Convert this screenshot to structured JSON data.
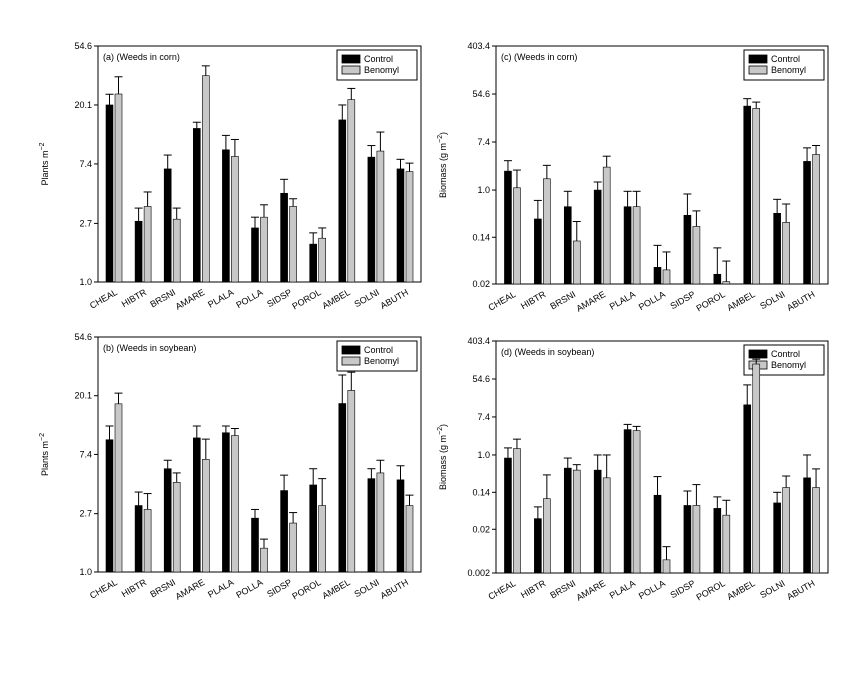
{
  "figure": {
    "legend": {
      "entries": [
        "Control",
        "Benomyl"
      ]
    },
    "colors": {
      "control": "#000000",
      "benomyl": "#c8c8c8",
      "axis": "#000000"
    }
  },
  "chart_data": [
    {
      "type": "bar",
      "panel": "a",
      "title": "(a) (Weeds in corn)",
      "ylabel": "Plants m",
      "ylabel_superscript": "−2",
      "yscale": "log",
      "yticks": [
        1.0,
        2.7,
        7.4,
        20.1,
        54.6
      ],
      "ytick_labels": [
        "1.0",
        "2.7",
        "7.4",
        "20.1",
        "54.6"
      ],
      "ylim": [
        1.0,
        54.6
      ],
      "legend_position": "top-right",
      "categories": [
        "CHEAL",
        "HIBTR",
        "BRSNI",
        "AMARE",
        "PLALA",
        "POLLA",
        "SIDSP",
        "POROL",
        "AMBEL",
        "SOLNI",
        "ABUTH"
      ],
      "series": [
        {
          "name": "Control",
          "values": [
            20.1,
            2.8,
            6.8,
            13.5,
            9.4,
            2.5,
            4.5,
            1.9,
            15.6,
            8.3,
            6.8
          ],
          "errors": [
            4.0,
            0.7,
            1.8,
            1.5,
            2.6,
            0.5,
            1.2,
            0.4,
            4.5,
            1.8,
            1.2
          ]
        },
        {
          "name": "Benomyl",
          "values": [
            24.2,
            3.6,
            2.9,
            33.0,
            8.4,
            3.0,
            3.6,
            2.1,
            22.0,
            9.2,
            6.5
          ],
          "errors": [
            8.2,
            1.0,
            0.6,
            6.0,
            2.8,
            0.7,
            0.5,
            0.4,
            4.6,
            3.5,
            1.0
          ]
        }
      ]
    },
    {
      "type": "bar",
      "panel": "c",
      "title": "(c) (Weeds in corn)",
      "ylabel": "Biomass (g m",
      "ylabel_superscript": "−2",
      "ylabel_suffix": ")",
      "yscale": "log",
      "yticks": [
        0.02,
        0.14,
        1.0,
        7.4,
        54.6,
        403.4
      ],
      "ytick_labels": [
        "0.02",
        "0.14",
        "1.0",
        "7.4",
        "54.6",
        "403.4"
      ],
      "ylim": [
        0.02,
        403.4
      ],
      "legend_position": "top-right",
      "categories": [
        "CHEAL",
        "HIBTR",
        "BRSNI",
        "AMARE",
        "PLALA",
        "POLLA",
        "SIDSP",
        "POROL",
        "AMBEL",
        "SOLNI",
        "ABUTH"
      ],
      "series": [
        {
          "name": "Control",
          "values": [
            2.2,
            0.3,
            0.5,
            1.0,
            0.5,
            0.04,
            0.35,
            0.03,
            33.0,
            0.38,
            3.3
          ],
          "errors": [
            1.2,
            0.35,
            0.45,
            0.4,
            0.45,
            0.06,
            0.5,
            0.06,
            12.0,
            0.3,
            2.5
          ]
        },
        {
          "name": "Benomyl",
          "values": [
            1.1,
            1.6,
            0.12,
            2.6,
            0.5,
            0.036,
            0.22,
            0.022,
            30.0,
            0.26,
            4.4
          ],
          "errors": [
            1.2,
            1.2,
            0.15,
            1.5,
            0.45,
            0.04,
            0.2,
            0.03,
            9.0,
            0.3,
            2.0
          ]
        }
      ]
    },
    {
      "type": "bar",
      "panel": "b",
      "title": "(b) (Weeds in soybean)",
      "ylabel": "Plants m",
      "ylabel_superscript": "−2",
      "yscale": "log",
      "yticks": [
        1.0,
        2.7,
        7.4,
        20.1,
        54.6
      ],
      "ytick_labels": [
        "1.0",
        "2.7",
        "7.4",
        "20.1",
        "54.6"
      ],
      "ylim": [
        1.0,
        54.6
      ],
      "legend_position": "top-right",
      "categories": [
        "CHEAL",
        "HIBTR",
        "BRSNI",
        "AMARE",
        "PLALA",
        "POLLA",
        "SIDSP",
        "POROL",
        "AMBEL",
        "SOLNI",
        "ABUTH"
      ],
      "series": [
        {
          "name": "Control",
          "values": [
            9.5,
            3.1,
            5.8,
            9.8,
            10.7,
            2.5,
            4.0,
            4.4,
            17.6,
            4.9,
            4.8
          ],
          "errors": [
            2.5,
            0.8,
            0.9,
            2.2,
            1.3,
            0.4,
            1.2,
            1.4,
            11.0,
            0.9,
            1.3
          ]
        },
        {
          "name": "Benomyl",
          "values": [
            17.5,
            2.9,
            4.6,
            6.8,
            10.2,
            1.5,
            2.3,
            3.1,
            22.0,
            5.4,
            3.1
          ],
          "errors": [
            3.5,
            0.9,
            0.8,
            2.8,
            1.3,
            0.25,
            0.45,
            1.8,
            8.0,
            1.3,
            0.6
          ]
        }
      ]
    },
    {
      "type": "bar",
      "panel": "d",
      "title": "(d) (Weeds in soybean)",
      "ylabel": "Biomass (g m",
      "ylabel_superscript": "−2",
      "ylabel_suffix": ")",
      "yscale": "log",
      "yticks": [
        0.002,
        0.02,
        0.14,
        1.0,
        7.4,
        54.6,
        403.4
      ],
      "ytick_labels": [
        "0.002",
        "0.02",
        "0.14",
        "1.0",
        "7.4",
        "54.6",
        "403.4"
      ],
      "ylim": [
        0.002,
        403.4
      ],
      "legend_position": "top-right",
      "categories": [
        "CHEAL",
        "HIBTR",
        "BRSNI",
        "AMARE",
        "PLALA",
        "POLLA",
        "SIDSP",
        "POROL",
        "AMBEL",
        "SOLNI",
        "ABUTH"
      ],
      "series": [
        {
          "name": "Control",
          "values": [
            0.85,
            0.035,
            0.5,
            0.45,
            3.8,
            0.12,
            0.07,
            0.06,
            14.0,
            0.08,
            0.3
          ],
          "errors": [
            0.6,
            0.03,
            0.35,
            0.55,
            1.2,
            0.2,
            0.08,
            0.05,
            26.0,
            0.06,
            0.7
          ]
        },
        {
          "name": "Benomyl",
          "values": [
            1.4,
            0.1,
            0.45,
            0.3,
            3.6,
            0.004,
            0.07,
            0.042,
            120.0,
            0.18,
            0.18
          ],
          "errors": [
            0.9,
            0.25,
            0.15,
            0.7,
            0.9,
            0.004,
            0.14,
            0.05,
            35.0,
            0.15,
            0.3
          ]
        }
      ]
    }
  ]
}
